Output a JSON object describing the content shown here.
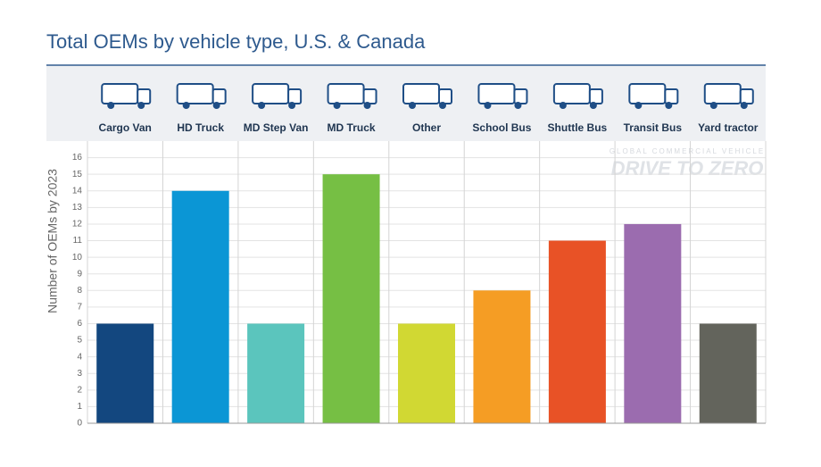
{
  "chart_data": {
    "type": "bar",
    "title": "Total OEMs by vehicle type, U.S. & Canada",
    "y_label": "Number of OEMs by 2023",
    "watermark_top": "GLOBAL COMMERCIAL VEHICLE",
    "watermark": "DRIVE TO ZERO",
    "categories": [
      "Cargo Van",
      "HD Truck",
      "MD Step Van",
      "MD Truck",
      "Other",
      "School Bus",
      "Shuttle Bus",
      "Transit Bus",
      "Yard tractor"
    ],
    "values": [
      6,
      14,
      6,
      15,
      6,
      8,
      11,
      12,
      6
    ],
    "colors": [
      "#13477f",
      "#0b96d5",
      "#5bc5bd",
      "#76bf44",
      "#d1d833",
      "#f59d24",
      "#e85226",
      "#9b6caf",
      "#63645c"
    ],
    "ylim": [
      0,
      17
    ],
    "yticks": [
      0,
      1,
      2,
      3,
      4,
      5,
      6,
      7,
      8,
      9,
      10,
      11,
      12,
      13,
      14,
      15,
      16
    ],
    "grid": true
  }
}
